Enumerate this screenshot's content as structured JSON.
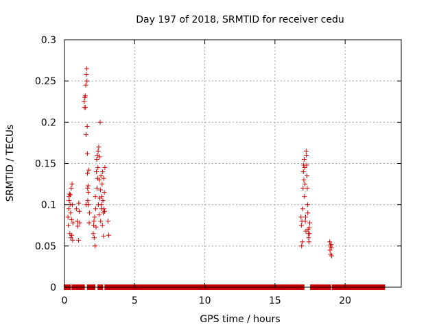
{
  "chart_data": {
    "type": "scatter",
    "title": "Day 197 of 2018, SRMTID for receiver cedu",
    "xlabel": "GPS time / hours",
    "ylabel": "SRMTID / TECUs",
    "xlim": [
      0,
      24
    ],
    "ylim": [
      0,
      0.3
    ],
    "xticks": [
      0,
      5,
      10,
      15,
      20
    ],
    "xtick_labels": [
      "0",
      "5",
      "10",
      "15",
      "20"
    ],
    "yticks": [
      0,
      0.05,
      0.1,
      0.15,
      0.2,
      0.25,
      0.3
    ],
    "ytick_labels": [
      "0",
      "0.05",
      "0.1",
      "0.15",
      "0.2",
      "0.25",
      "0.3"
    ],
    "grid": true,
    "marker": "+",
    "color": "#cc0000",
    "series": [
      {
        "name": "SRMTID",
        "points": [
          [
            0.25,
            0.085
          ],
          [
            0.28,
            0.075
          ],
          [
            0.3,
            0.095
          ],
          [
            0.32,
            0.11
          ],
          [
            0.34,
            0.105
          ],
          [
            0.36,
            0.113
          ],
          [
            0.38,
            0.065
          ],
          [
            0.4,
            0.1
          ],
          [
            0.42,
            0.112
          ],
          [
            0.44,
            0.09
          ],
          [
            0.46,
            0.06
          ],
          [
            0.48,
            0.12
          ],
          [
            0.5,
            0.082
          ],
          [
            0.52,
            0.063
          ],
          [
            0.54,
            0.125
          ],
          [
            0.56,
            0.1
          ],
          [
            0.58,
            0.057
          ],
          [
            0.6,
            0.078
          ],
          [
            0.85,
            0.095
          ],
          [
            0.9,
            0.08
          ],
          [
            0.95,
            0.074
          ],
          [
            1.0,
            0.057
          ],
          [
            1.02,
            0.102
          ],
          [
            1.05,
            0.092
          ],
          [
            1.08,
            0.078
          ],
          [
            1.4,
            0.225
          ],
          [
            1.42,
            0.218
          ],
          [
            1.45,
            0.23
          ],
          [
            1.48,
            0.232
          ],
          [
            1.5,
            0.218
          ],
          [
            1.52,
            0.245
          ],
          [
            1.54,
            0.185
          ],
          [
            1.55,
            0.1
          ],
          [
            1.56,
            0.258
          ],
          [
            1.58,
            0.265
          ],
          [
            1.6,
            0.25
          ],
          [
            1.62,
            0.195
          ],
          [
            1.63,
            0.162
          ],
          [
            1.64,
            0.138
          ],
          [
            1.65,
            0.12
          ],
          [
            1.66,
            0.105
          ],
          [
            1.68,
            0.123
          ],
          [
            1.7,
            0.115
          ],
          [
            1.72,
            0.1
          ],
          [
            1.74,
            0.142
          ],
          [
            1.76,
            0.078
          ],
          [
            1.78,
            0.09
          ],
          [
            2.05,
            0.065
          ],
          [
            2.08,
            0.075
          ],
          [
            2.1,
            0.08
          ],
          [
            2.12,
            0.06
          ],
          [
            2.15,
            0.085
          ],
          [
            2.18,
            0.05
          ],
          [
            2.2,
            0.11
          ],
          [
            2.22,
            0.095
          ],
          [
            2.25,
            0.073
          ],
          [
            2.28,
            0.14
          ],
          [
            2.3,
            0.155
          ],
          [
            2.32,
            0.12
          ],
          [
            2.34,
            0.16
          ],
          [
            2.36,
            0.132
          ],
          [
            2.38,
            0.145
          ],
          [
            2.4,
            0.165
          ],
          [
            2.42,
            0.1
          ],
          [
            2.44,
            0.17
          ],
          [
            2.46,
            0.088
          ],
          [
            2.48,
            0.13
          ],
          [
            2.5,
            0.158
          ],
          [
            2.52,
            0.108
          ],
          [
            2.54,
            0.2
          ],
          [
            2.56,
            0.118
          ],
          [
            2.58,
            0.08
          ],
          [
            2.6,
            0.135
          ],
          [
            2.62,
            0.1
          ],
          [
            2.64,
            0.095
          ],
          [
            2.66,
            0.11
          ],
          [
            2.68,
            0.125
          ],
          [
            2.7,
            0.075
          ],
          [
            2.72,
            0.14
          ],
          [
            2.74,
            0.105
          ],
          [
            2.76,
            0.09
          ],
          [
            2.78,
            0.062
          ],
          [
            2.8,
            0.132
          ],
          [
            2.82,
            0.095
          ],
          [
            2.84,
            0.115
          ],
          [
            2.86,
            0.092
          ],
          [
            2.88,
            0.145
          ],
          [
            3.1,
            0.08
          ],
          [
            3.15,
            0.063
          ],
          [
            16.85,
            0.085
          ],
          [
            16.88,
            0.075
          ],
          [
            16.9,
            0.05
          ],
          [
            16.92,
            0.08
          ],
          [
            16.95,
            0.055
          ],
          [
            16.98,
            0.095
          ],
          [
            17.0,
            0.12
          ],
          [
            17.02,
            0.14
          ],
          [
            17.04,
            0.148
          ],
          [
            17.06,
            0.13
          ],
          [
            17.08,
            0.155
          ],
          [
            17.1,
            0.11
          ],
          [
            17.12,
            0.145
          ],
          [
            17.14,
            0.125
          ],
          [
            17.16,
            0.08
          ],
          [
            17.18,
            0.085
          ],
          [
            17.2,
            0.068
          ],
          [
            17.22,
            0.165
          ],
          [
            17.24,
            0.16
          ],
          [
            17.26,
            0.148
          ],
          [
            17.28,
            0.135
          ],
          [
            17.3,
            0.12
          ],
          [
            17.32,
            0.1
          ],
          [
            17.34,
            0.09
          ],
          [
            17.36,
            0.07
          ],
          [
            17.38,
            0.065
          ],
          [
            17.4,
            0.06
          ],
          [
            17.42,
            0.055
          ],
          [
            17.44,
            0.072
          ],
          [
            17.46,
            0.065
          ],
          [
            17.48,
            0.078
          ],
          [
            18.9,
            0.055
          ],
          [
            18.92,
            0.045
          ],
          [
            18.95,
            0.05
          ],
          [
            18.97,
            0.04
          ],
          [
            19.0,
            0.052
          ],
          [
            19.02,
            0.048
          ],
          [
            19.04,
            0.038
          ]
        ],
        "zero_ranges": [
          [
            0.1,
            0.3
          ],
          [
            0.65,
            0.85
          ],
          [
            1.1,
            1.3
          ],
          [
            1.75,
            2.05
          ],
          [
            2.5,
            2.6
          ],
          [
            3.0,
            16.95
          ],
          [
            17.65,
            18.85
          ],
          [
            19.2,
            22.7
          ]
        ]
      }
    ]
  }
}
